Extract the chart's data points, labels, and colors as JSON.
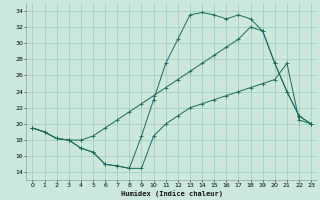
{
  "xlabel": "Humidex (Indice chaleur)",
  "bg_color": "#cce8dd",
  "grid_color": "#99ccbb",
  "line_color": "#1a6b5a",
  "xlim": [
    -0.5,
    23.5
  ],
  "ylim": [
    13.0,
    35.0
  ],
  "yticks": [
    14,
    16,
    18,
    20,
    22,
    24,
    26,
    28,
    30,
    32,
    34
  ],
  "xticks": [
    0,
    1,
    2,
    3,
    4,
    5,
    6,
    7,
    8,
    9,
    10,
    11,
    12,
    13,
    14,
    15,
    16,
    17,
    18,
    19,
    20,
    21,
    22,
    23
  ],
  "line1_x": [
    0,
    1,
    2,
    3,
    4,
    5,
    6,
    7,
    8,
    9,
    10,
    11,
    12,
    13,
    14,
    15,
    16,
    17,
    18,
    19,
    20,
    21,
    22,
    23
  ],
  "line1_y": [
    19.5,
    19.0,
    18.2,
    18.0,
    17.0,
    16.5,
    15.0,
    14.8,
    14.5,
    14.5,
    18.5,
    20.0,
    21.0,
    22.0,
    22.5,
    23.0,
    23.5,
    24.0,
    24.5,
    25.0,
    25.5,
    27.5,
    20.5,
    20.0
  ],
  "line2_x": [
    0,
    1,
    2,
    3,
    4,
    5,
    6,
    7,
    8,
    9,
    10,
    11,
    12,
    13,
    14,
    15,
    16,
    17,
    18,
    19,
    20,
    21,
    22,
    23
  ],
  "line2_y": [
    19.5,
    19.0,
    18.2,
    18.0,
    18.0,
    18.5,
    19.5,
    20.5,
    21.5,
    22.5,
    23.5,
    24.5,
    25.5,
    26.5,
    27.5,
    28.5,
    29.5,
    30.5,
    32.0,
    31.5,
    27.5,
    24.0,
    21.0,
    20.0
  ],
  "line3_x": [
    0,
    1,
    2,
    3,
    4,
    5,
    6,
    7,
    8,
    9,
    10,
    11,
    12,
    13,
    14,
    15,
    16,
    17,
    18,
    19,
    20,
    21,
    22,
    23
  ],
  "line3_y": [
    19.5,
    19.0,
    18.2,
    18.0,
    17.0,
    16.5,
    15.0,
    14.8,
    14.5,
    18.5,
    23.0,
    27.5,
    30.5,
    33.5,
    33.8,
    33.5,
    33.0,
    33.5,
    33.0,
    31.5,
    27.5,
    24.0,
    21.0,
    20.0
  ]
}
